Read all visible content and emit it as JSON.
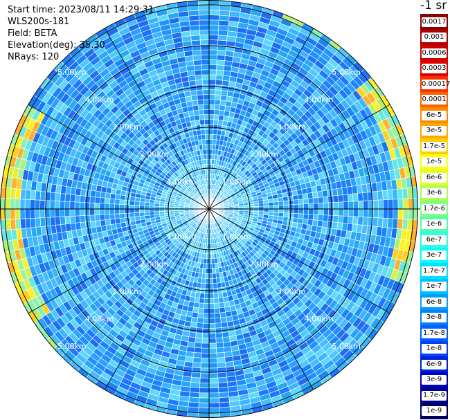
{
  "info": {
    "start_time": "Start time: 2023/08/11 14:29:31",
    "device": "WLS200s-181",
    "field": "Field: BETA",
    "elevation": "Elevation(deg): 35.30",
    "nrays": "NRays: 120"
  },
  "colorbar": {
    "unit": "-1 sr",
    "entries": [
      {
        "label": "0.0017",
        "color": "#8b0000"
      },
      {
        "label": "0.001",
        "color": "#b00000"
      },
      {
        "label": "0.0006",
        "color": "#cc0000"
      },
      {
        "label": "0.0003",
        "color": "#e00000"
      },
      {
        "label": "0.00017",
        "color": "#ff3000"
      },
      {
        "label": "0.0001",
        "color": "#ff6000"
      },
      {
        "label": "6e-5",
        "color": "#ff8c00"
      },
      {
        "label": "3e-5",
        "color": "#ffaa00"
      },
      {
        "label": "1.7e-5",
        "color": "#ffd000"
      },
      {
        "label": "1e-5",
        "color": "#ffff00"
      },
      {
        "label": "6e-6",
        "color": "#e0ff30"
      },
      {
        "label": "3e-6",
        "color": "#b0ff50"
      },
      {
        "label": "1.7e-6",
        "color": "#80ff80"
      },
      {
        "label": "1e-6",
        "color": "#50ffb0"
      },
      {
        "label": "6e-7",
        "color": "#30ffe0"
      },
      {
        "label": "3e-7",
        "color": "#00ffff"
      },
      {
        "label": "1.7e-7",
        "color": "#00e0ff"
      },
      {
        "label": "1e-7",
        "color": "#00bfff"
      },
      {
        "label": "6e-8",
        "color": "#009fff"
      },
      {
        "label": "3e-8",
        "color": "#0080ff"
      },
      {
        "label": "1.7e-8",
        "color": "#0060ff"
      },
      {
        "label": "1e-8",
        "color": "#0040ff"
      },
      {
        "label": "6e-9",
        "color": "#0020e0"
      },
      {
        "label": "3e-9",
        "color": "#0000c0"
      },
      {
        "label": "1.7e-9",
        "color": "#000090"
      },
      {
        "label": "1e-9",
        "color": "#000060"
      }
    ]
  },
  "range_rings": [
    {
      "value_km": 1,
      "label": "1.00km"
    },
    {
      "value_km": 2,
      "label": "2.00km"
    },
    {
      "value_km": 3,
      "label": "3.00km"
    },
    {
      "value_km": 4,
      "label": "4.00km"
    },
    {
      "value_km": 5,
      "label": "5.00km"
    }
  ],
  "nrays": 120,
  "palette": {
    "background_blue": "#1e90ff",
    "ring_color": "#000000",
    "label_color": "#ffffff"
  }
}
